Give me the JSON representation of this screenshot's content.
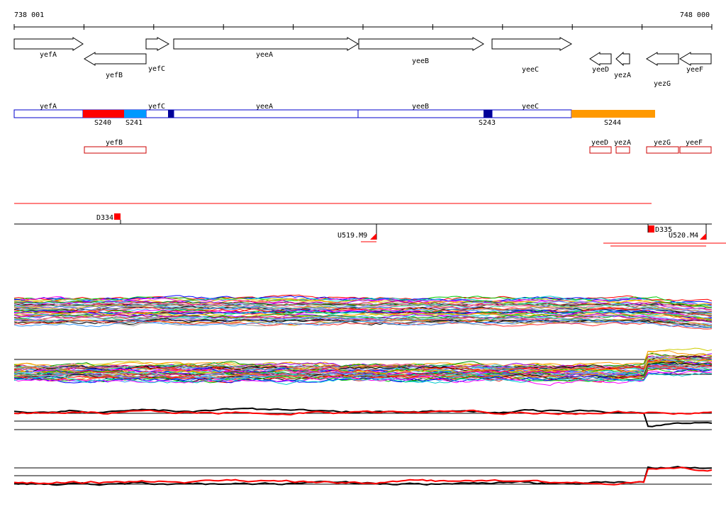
{
  "ruler": {
    "start_label": "738 001",
    "end_label": "748 000"
  },
  "genes": [
    {
      "name": "yefA",
      "strand": "+"
    },
    {
      "name": "yefB",
      "strand": "-"
    },
    {
      "name": "yefC",
      "strand": "+"
    },
    {
      "name": "yeeA",
      "strand": "+"
    },
    {
      "name": "yeeB",
      "strand": "+"
    },
    {
      "name": "yeeC",
      "strand": "+"
    },
    {
      "name": "yeeD",
      "strand": "-"
    },
    {
      "name": "yezA",
      "strand": "-"
    },
    {
      "name": "yezG",
      "strand": "-"
    },
    {
      "name": "yeeF",
      "strand": "-"
    }
  ],
  "segment_track": {
    "plus_labels": [
      "yefA",
      "yefC",
      "yeeA",
      "yeeB",
      "yeeC"
    ],
    "segments": [
      {
        "label": "S240",
        "color": "#ff0000"
      },
      {
        "label": "S241",
        "color": "#0099ff"
      },
      {
        "label": "S243",
        "color": "#000099"
      },
      {
        "label": "S244",
        "color": "#ff9900"
      }
    ],
    "minus_labels": [
      "yefB",
      "yeeD",
      "yezA",
      "yezG",
      "yeeF"
    ]
  },
  "features": {
    "D334": "D334",
    "D335": "D335",
    "U519": "U519.M9",
    "U520": "U520.M4"
  },
  "colors": {
    "gene_outline": "#000000",
    "segment_outline": "#0000cc",
    "minus_outline": "#cc0000",
    "marker": "#ff0000"
  }
}
